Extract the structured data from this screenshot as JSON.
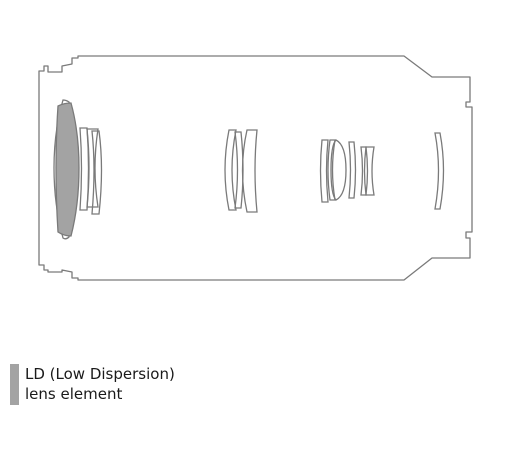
{
  "colors": {
    "outline": "#7a7a7a",
    "ld_fill": "#a3a3a3",
    "text": "#1a1a1a",
    "background": "#ffffff"
  },
  "legend": {
    "line1": "LD (Low Dispersion)",
    "line2": "lens element"
  }
}
